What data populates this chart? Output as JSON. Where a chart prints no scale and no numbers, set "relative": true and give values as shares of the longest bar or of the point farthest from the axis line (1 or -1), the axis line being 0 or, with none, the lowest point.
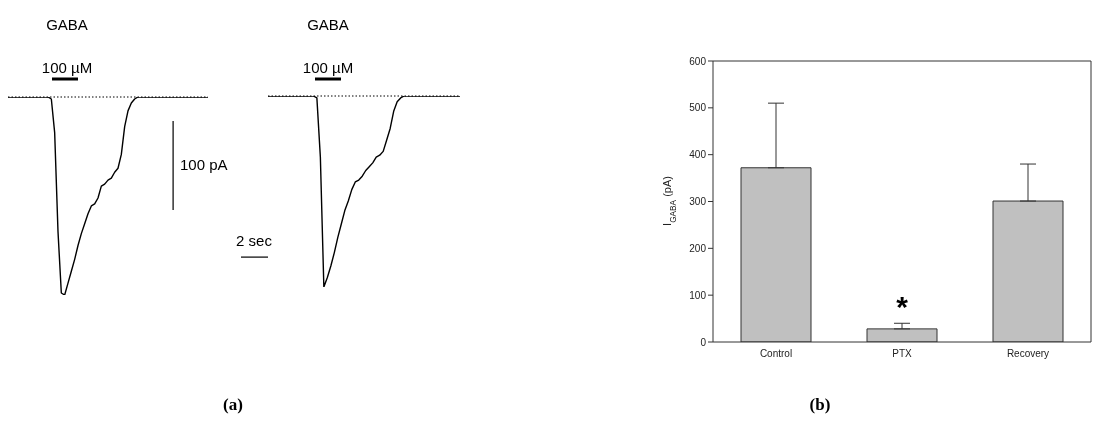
{
  "chart_data": [
    {
      "type": "line",
      "relative": true,
      "tick_labels": false,
      "annotations": [
        "GABA",
        "100 µM",
        "100 pA",
        "2 sec",
        "(a)"
      ],
      "ref_lines": [
        {
          "axis": "y",
          "value": 0,
          "line_style": "dotted",
          "color": "#000000"
        }
      ],
      "categories": [
        null,
        null,
        null,
        null,
        null,
        null,
        null,
        null,
        null,
        null,
        null,
        null,
        null,
        null,
        null,
        null,
        null,
        null,
        null,
        null,
        null,
        null,
        null,
        null,
        null,
        null,
        null,
        null,
        null,
        null,
        null,
        null,
        null,
        null,
        null,
        null,
        null,
        null,
        null,
        null,
        null,
        null,
        null,
        null,
        null,
        null,
        null,
        null,
        null,
        null,
        null,
        null,
        null,
        null,
        null,
        null,
        null,
        null,
        null,
        null,
        null
      ],
      "series": [
        {
          "color": "#000000",
          "values": [
            0,
            0,
            0,
            0,
            0,
            0,
            0,
            0,
            0,
            0,
            0,
            0,
            0,
            -0.01,
            -0.18,
            -0.68,
            -0.99,
            -1,
            -0.94,
            -0.88,
            -0.82,
            -0.75,
            -0.69,
            -0.64,
            -0.59,
            -0.55,
            -0.54,
            -0.51,
            -0.45,
            -0.44,
            -0.42,
            -0.41,
            -0.38,
            -0.36,
            -0.29,
            -0.15,
            -0.07,
            -0.03,
            -0.01,
            0,
            0,
            0,
            0,
            0,
            0,
            0,
            0,
            0,
            0,
            0,
            0,
            0,
            0,
            0,
            0,
            0,
            0,
            0,
            0,
            0,
            0
          ]
        }
      ]
    },
    {
      "type": "line",
      "relative": true,
      "tick_labels": false,
      "annotations": [
        "GABA",
        "100 µM"
      ],
      "ref_lines": [
        {
          "axis": "y",
          "value": 0,
          "line_style": "dotted",
          "color": "#000000"
        }
      ],
      "categories": [
        null,
        null,
        null,
        null,
        null,
        null,
        null,
        null,
        null,
        null,
        null,
        null,
        null,
        null,
        null,
        null,
        null,
        null,
        null,
        null,
        null,
        null,
        null,
        null,
        null,
        null,
        null,
        null,
        null,
        null,
        null,
        null,
        null,
        null,
        null,
        null,
        null,
        null,
        null,
        null,
        null,
        null,
        null,
        null,
        null,
        null,
        null,
        null,
        null,
        null,
        null,
        null,
        null,
        null,
        null,
        null
      ],
      "series": [
        {
          "color": "#000000",
          "values": [
            0,
            0,
            0,
            0,
            0,
            0,
            0,
            0,
            0,
            0,
            0,
            0,
            0,
            0,
            -0.01,
            -0.32,
            -1,
            -0.95,
            -0.89,
            -0.82,
            -0.74,
            -0.67,
            -0.6,
            -0.55,
            -0.49,
            -0.45,
            -0.44,
            -0.42,
            -0.39,
            -0.37,
            -0.35,
            -0.32,
            -0.31,
            -0.29,
            -0.23,
            -0.17,
            -0.08,
            -0.03,
            -0.01,
            0,
            0,
            0,
            0,
            0,
            0,
            0,
            0,
            0,
            0,
            0,
            0,
            0,
            0,
            0,
            0,
            0
          ]
        }
      ]
    },
    {
      "type": "bar",
      "categories": [
        "Control",
        "PTX",
        "Recovery"
      ],
      "values": [
        372,
        28,
        301
      ],
      "errors": [
        138,
        12,
        79
      ],
      "color": "#c0c0c0",
      "ylabel": "I$_{GABA}$ (pA)",
      "ylim": [
        0,
        600
      ],
      "yticks": [
        0,
        100,
        200,
        300,
        400,
        500,
        600
      ],
      "annotations": [
        {
          "text": "*",
          "x": "PTX",
          "y": 40
        },
        "(b)"
      ]
    }
  ]
}
